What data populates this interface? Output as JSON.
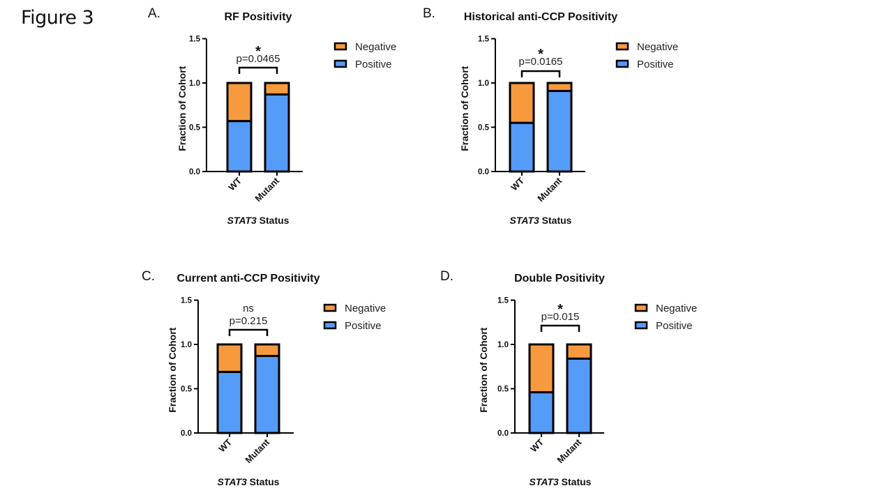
{
  "figure_label": "Figure 3",
  "colors": {
    "negative": "#F79A3E",
    "positive": "#559BF8",
    "outline": "#000000"
  },
  "chart_data": [
    {
      "panel": "A.",
      "type": "bar",
      "stacked": true,
      "title": "RF Positivity",
      "categories": [
        "WT",
        "Mutant"
      ],
      "series": [
        {
          "name": "Positive",
          "values": [
            0.57,
            0.87
          ]
        },
        {
          "name": "Negative",
          "values": [
            0.43,
            0.13
          ]
        }
      ],
      "xlabel_italic": "STAT3",
      "xlabel_rest": " Status",
      "ylabel": "Fraction of Cohort",
      "ylim": [
        0,
        1.5
      ],
      "yticks": [
        "0.0",
        "0.5",
        "1.0",
        "1.5"
      ],
      "ytick_values": [
        0,
        0.5,
        1.0,
        1.5
      ],
      "significance": "*",
      "pvalue": "p=0.0465",
      "legend": [
        "Negative",
        "Positive"
      ],
      "legend_position": "right",
      "grid": false
    },
    {
      "panel": "B.",
      "type": "bar",
      "stacked": true,
      "title": "Historical anti-CCP Positivity",
      "categories": [
        "WT",
        "Mutant"
      ],
      "series": [
        {
          "name": "Positive",
          "values": [
            0.55,
            0.91
          ]
        },
        {
          "name": "Negative",
          "values": [
            0.45,
            0.09
          ]
        }
      ],
      "xlabel_italic": "STAT3",
      "xlabel_rest": " Status",
      "ylabel": "Fraction of Cohort",
      "ylim": [
        0,
        1.5
      ],
      "yticks": [
        "0.0",
        "0.5",
        "1.0",
        "1.5"
      ],
      "ytick_values": [
        0,
        0.5,
        1.0,
        1.5
      ],
      "significance": "*",
      "pvalue": "p=0.0165",
      "legend": [
        "Negative",
        "Positive"
      ],
      "legend_position": "right",
      "grid": false
    },
    {
      "panel": "C.",
      "type": "bar",
      "stacked": true,
      "title": "Current anti-CCP Positivity",
      "categories": [
        "WT",
        "Mutant"
      ],
      "series": [
        {
          "name": "Positive",
          "values": [
            0.69,
            0.87
          ]
        },
        {
          "name": "Negative",
          "values": [
            0.31,
            0.13
          ]
        }
      ],
      "xlabel_italic": "STAT3",
      "xlabel_rest": " Status",
      "ylabel": "Fraction of Cohort",
      "ylim": [
        0,
        1.5
      ],
      "yticks": [
        "0.0",
        "0.5",
        "1.0",
        "1.5"
      ],
      "ytick_values": [
        0,
        0.5,
        1.0,
        1.5
      ],
      "significance": "ns",
      "pvalue": "p=0.215",
      "legend": [
        "Negative",
        "Positive"
      ],
      "legend_position": "right",
      "grid": false
    },
    {
      "panel": "D.",
      "type": "bar",
      "stacked": true,
      "title": "Double Positivity",
      "categories": [
        "WT",
        "Mutant"
      ],
      "series": [
        {
          "name": "Positive",
          "values": [
            0.46,
            0.84
          ]
        },
        {
          "name": "Negative",
          "values": [
            0.54,
            0.16
          ]
        }
      ],
      "xlabel_italic": "STAT3",
      "xlabel_rest": " Status",
      "ylabel": "Fraction of Cohort",
      "ylim": [
        0,
        1.5
      ],
      "yticks": [
        "0.0",
        "0.5",
        "1.0",
        "1.5"
      ],
      "ytick_values": [
        0,
        0.5,
        1.0,
        1.5
      ],
      "significance": "*",
      "pvalue": "p=0.015",
      "legend": [
        "Negative",
        "Positive"
      ],
      "legend_position": "right",
      "grid": false
    }
  ]
}
